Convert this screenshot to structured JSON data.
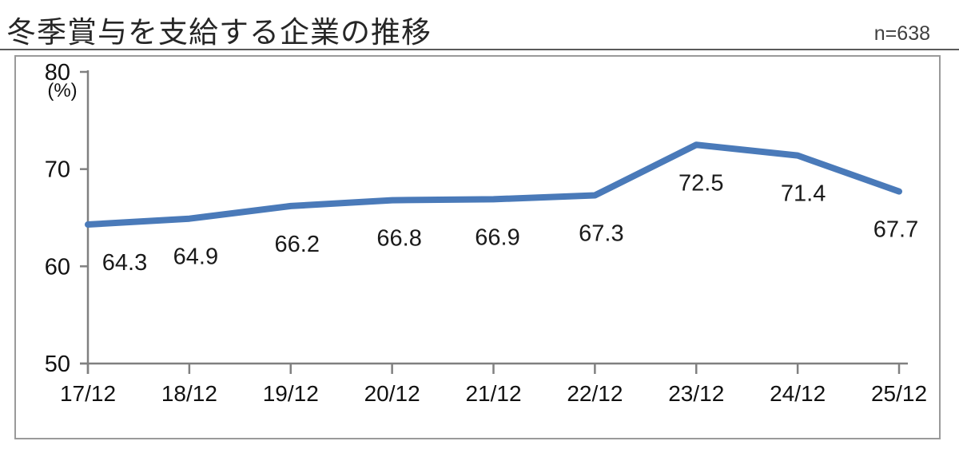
{
  "page": {
    "title": "冬季賞与を支給する企業の推移",
    "sample_label": "n=638"
  },
  "chart_data": {
    "type": "line",
    "title": "冬季賞与を支給する企業の推移",
    "annotation": "n=638",
    "categories": [
      "17/12",
      "18/12",
      "19/12",
      "20/12",
      "21/12",
      "22/12",
      "23/12",
      "24/12",
      "25/12"
    ],
    "values": [
      64.3,
      64.9,
      66.2,
      66.8,
      66.9,
      67.3,
      72.5,
      71.4,
      67.7
    ],
    "data_label_decimals": 1,
    "xlabel": "",
    "ylabel": "(%)",
    "y_ticks": [
      80,
      70,
      60,
      50
    ],
    "ylim": [
      50,
      80
    ],
    "grid": false,
    "legend": "none",
    "line_color": "#4a7ab9",
    "axis_color": "#808080",
    "label_color": "#1a1a1a"
  }
}
